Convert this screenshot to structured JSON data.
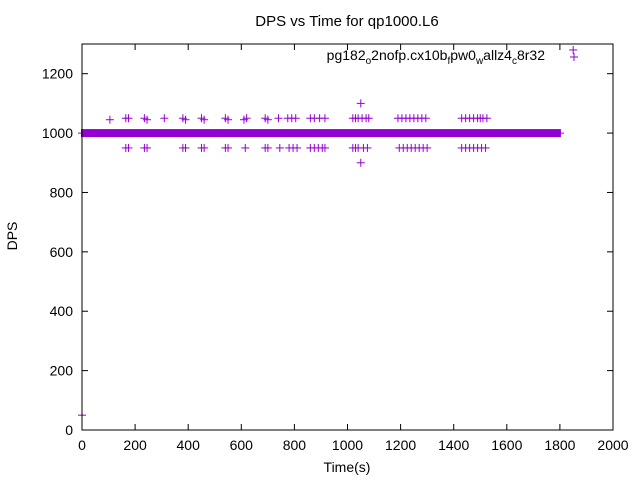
{
  "chart_data": {
    "type": "scatter",
    "title": "DPS vs Time for qp1000.L6",
    "xlabel": "Time(s)",
    "ylabel": "DPS",
    "xlim": [
      0,
      2000
    ],
    "ylim": [
      0,
      1300
    ],
    "xticks": [
      0,
      200,
      400,
      600,
      800,
      1000,
      1200,
      1400,
      1600,
      1800,
      2000
    ],
    "yticks": [
      0,
      200,
      400,
      600,
      800,
      1000,
      1200
    ],
    "grid": false,
    "legend_position": "top-right",
    "series": [
      {
        "name": "pg182_o2nofp.cx10b_fpw0_wallz4_c8r32",
        "legend_parts": [
          {
            "text": "pg182",
            "sub": false
          },
          {
            "text": "o",
            "sub": true
          },
          {
            "text": "2nofp.cx10b",
            "sub": false
          },
          {
            "text": "f",
            "sub": true
          },
          {
            "text": "pw0",
            "sub": false
          },
          {
            "text": "w",
            "sub": true
          },
          {
            "text": "allz4",
            "sub": false
          },
          {
            "text": "c",
            "sub": true
          },
          {
            "text": "8r32",
            "sub": false
          }
        ],
        "color": "#9400d3",
        "marker": "plus",
        "baseline": {
          "y": 1000,
          "x_start": 0,
          "x_end": 1800
        },
        "points": [
          [
            0,
            50
          ],
          [
            105,
            1045
          ],
          [
            165,
            1050
          ],
          [
            175,
            1050
          ],
          [
            165,
            950
          ],
          [
            175,
            950
          ],
          [
            235,
            1050
          ],
          [
            245,
            1045
          ],
          [
            235,
            950
          ],
          [
            245,
            950
          ],
          [
            310,
            1050
          ],
          [
            380,
            1050
          ],
          [
            390,
            1045
          ],
          [
            380,
            950
          ],
          [
            390,
            950
          ],
          [
            450,
            1050
          ],
          [
            460,
            1045
          ],
          [
            450,
            950
          ],
          [
            460,
            950
          ],
          [
            540,
            1050
          ],
          [
            550,
            1045
          ],
          [
            540,
            950
          ],
          [
            550,
            950
          ],
          [
            610,
            1045
          ],
          [
            620,
            1050
          ],
          [
            615,
            950
          ],
          [
            690,
            1050
          ],
          [
            700,
            1045
          ],
          [
            690,
            950
          ],
          [
            700,
            950
          ],
          [
            740,
            1050
          ],
          [
            745,
            950
          ],
          [
            775,
            1050
          ],
          [
            790,
            1050
          ],
          [
            805,
            1050
          ],
          [
            780,
            950
          ],
          [
            795,
            950
          ],
          [
            810,
            950
          ],
          [
            860,
            1050
          ],
          [
            875,
            1050
          ],
          [
            895,
            1050
          ],
          [
            915,
            1050
          ],
          [
            860,
            950
          ],
          [
            875,
            950
          ],
          [
            890,
            950
          ],
          [
            905,
            950
          ],
          [
            915,
            950
          ],
          [
            1020,
            1050
          ],
          [
            1030,
            1050
          ],
          [
            1040,
            1050
          ],
          [
            1055,
            1050
          ],
          [
            1070,
            1050
          ],
          [
            1080,
            1050
          ],
          [
            1020,
            950
          ],
          [
            1030,
            950
          ],
          [
            1040,
            950
          ],
          [
            1060,
            950
          ],
          [
            1075,
            950
          ],
          [
            1050,
            1100
          ],
          [
            1050,
            900
          ],
          [
            1190,
            1050
          ],
          [
            1205,
            1050
          ],
          [
            1220,
            1050
          ],
          [
            1235,
            1050
          ],
          [
            1250,
            1050
          ],
          [
            1265,
            1050
          ],
          [
            1280,
            1050
          ],
          [
            1295,
            1050
          ],
          [
            1195,
            950
          ],
          [
            1210,
            950
          ],
          [
            1225,
            950
          ],
          [
            1240,
            950
          ],
          [
            1255,
            950
          ],
          [
            1270,
            950
          ],
          [
            1285,
            950
          ],
          [
            1300,
            950
          ],
          [
            1430,
            1050
          ],
          [
            1445,
            1050
          ],
          [
            1460,
            1050
          ],
          [
            1475,
            1050
          ],
          [
            1490,
            1050
          ],
          [
            1500,
            1050
          ],
          [
            1510,
            1050
          ],
          [
            1525,
            1050
          ],
          [
            1430,
            950
          ],
          [
            1445,
            950
          ],
          [
            1460,
            950
          ],
          [
            1475,
            950
          ],
          [
            1490,
            950
          ],
          [
            1505,
            950
          ],
          [
            1520,
            950
          ],
          [
            1850,
            1280
          ]
        ]
      }
    ]
  }
}
